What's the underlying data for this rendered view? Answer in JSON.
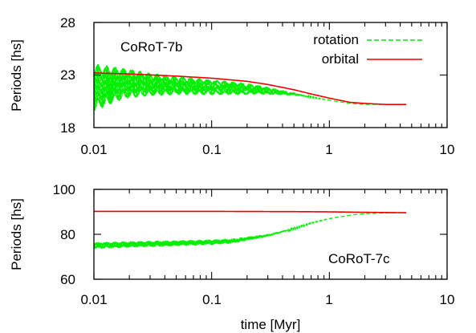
{
  "chart_data": [
    {
      "type": "line",
      "panel_label": "CoRoT-7b",
      "ylabel": "Periods [hs]",
      "xlabel": "",
      "xscale": "log",
      "xlim": [
        0.01,
        10
      ],
      "ylim": [
        18,
        28
      ],
      "xticks": [
        "0.01",
        "0.1",
        "1",
        "10"
      ],
      "yticks": [
        "18",
        "23",
        "28"
      ],
      "legend_position": "top-right",
      "series": [
        {
          "name": "rotation",
          "style": "dashed",
          "color": "#00ee00",
          "oscillating": true,
          "x": [
            0.01,
            0.015,
            0.02,
            0.03,
            0.05,
            0.08,
            0.12,
            0.18,
            0.25,
            0.35,
            0.5,
            0.7,
            1.0,
            1.5,
            2.0,
            3.0,
            4.5
          ],
          "y": [
            21.8,
            22.1,
            22.2,
            22.1,
            22.0,
            21.9,
            21.8,
            21.7,
            21.6,
            21.4,
            21.2,
            20.9,
            20.6,
            20.3,
            20.2,
            20.2,
            20.2
          ],
          "amplitude": [
            2.3,
            1.7,
            1.4,
            1.1,
            0.9,
            0.8,
            0.7,
            0.6,
            0.45,
            0.3,
            0.15,
            0.05,
            0.0,
            0.0,
            0.0,
            0.0,
            0.0
          ]
        },
        {
          "name": "orbital",
          "style": "solid",
          "color": "#ee0000",
          "x": [
            0.01,
            0.02,
            0.05,
            0.1,
            0.2,
            0.3,
            0.5,
            0.7,
            1.0,
            1.5,
            2.0,
            3.0,
            4.5
          ],
          "y": [
            23.2,
            23.1,
            22.9,
            22.7,
            22.4,
            22.1,
            21.6,
            21.2,
            20.8,
            20.4,
            20.3,
            20.2,
            20.2
          ]
        }
      ]
    },
    {
      "type": "line",
      "panel_label": "CoRoT-7c",
      "ylabel": "Periods [hs]",
      "xlabel": "time [Myr]",
      "xscale": "log",
      "xlim": [
        0.01,
        10
      ],
      "ylim": [
        60,
        100
      ],
      "xticks": [
        "0.01",
        "0.1",
        "1",
        "10"
      ],
      "yticks": [
        "60",
        "80",
        "100"
      ],
      "series": [
        {
          "name": "rotation",
          "style": "dashed",
          "color": "#00ee00",
          "oscillating": true,
          "x": [
            0.01,
            0.02,
            0.05,
            0.1,
            0.15,
            0.2,
            0.3,
            0.5,
            0.7,
            1.0,
            1.5,
            2.0,
            3.0,
            4.5
          ],
          "y": [
            75.0,
            75.5,
            76.0,
            76.5,
            77.0,
            78.0,
            79.5,
            82.5,
            85.0,
            87.0,
            88.5,
            89.2,
            89.5,
            89.6
          ],
          "amplitude": [
            1.5,
            1.4,
            1.3,
            1.2,
            1.1,
            0.9,
            0.6,
            0.3,
            0.15,
            0.05,
            0.0,
            0.0,
            0.0,
            0.0
          ]
        },
        {
          "name": "orbital",
          "style": "solid",
          "color": "#ee0000",
          "x": [
            0.01,
            0.1,
            0.5,
            1.0,
            2.0,
            3.0,
            4.5
          ],
          "y": [
            90.2,
            90.2,
            90.1,
            90.0,
            89.8,
            89.7,
            89.6
          ]
        }
      ]
    }
  ]
}
